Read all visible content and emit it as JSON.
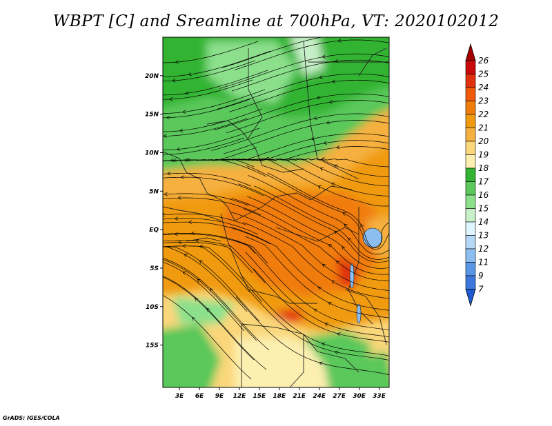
{
  "title": "WBPT [C] and Sreamline at 700hPa, VT: 2020102012",
  "credit": "GrADS: IGES/COLA",
  "map": {
    "lat_labels": [
      "20N",
      "15N",
      "10N",
      "5N",
      "EQ",
      "5S",
      "10S",
      "15S"
    ],
    "lat_values": [
      20,
      15,
      10,
      5,
      0,
      -5,
      -10,
      -15
    ],
    "lon_labels": [
      "3E",
      "6E",
      "9E",
      "12E",
      "15E",
      "18E",
      "21E",
      "24E",
      "27E",
      "30E",
      "33E"
    ],
    "lon_values": [
      3,
      6,
      9,
      12,
      15,
      18,
      21,
      24,
      27,
      30,
      33
    ],
    "lon_range": [
      0.5,
      34.5
    ],
    "lat_range": [
      -20.5,
      25
    ]
  },
  "colorbar": {
    "labels": [
      "26",
      "25",
      "24",
      "23",
      "22",
      "21",
      "20",
      "19",
      "18",
      "17",
      "16",
      "15",
      "14",
      "13",
      "12",
      "11",
      "9",
      "7"
    ],
    "colors": [
      "#a50000",
      "#c80a0a",
      "#e0300c",
      "#f05a0a",
      "#f07c0a",
      "#f09a10",
      "#f5b040",
      "#fad77a",
      "#fcefb0",
      "#32b432",
      "#5ac85a",
      "#8ce08c",
      "#c8f0c8",
      "#dff5ff",
      "#b4d8f5",
      "#8cbef0",
      "#5a96e6",
      "#3c78dc",
      "#1e5ad2"
    ]
  }
}
